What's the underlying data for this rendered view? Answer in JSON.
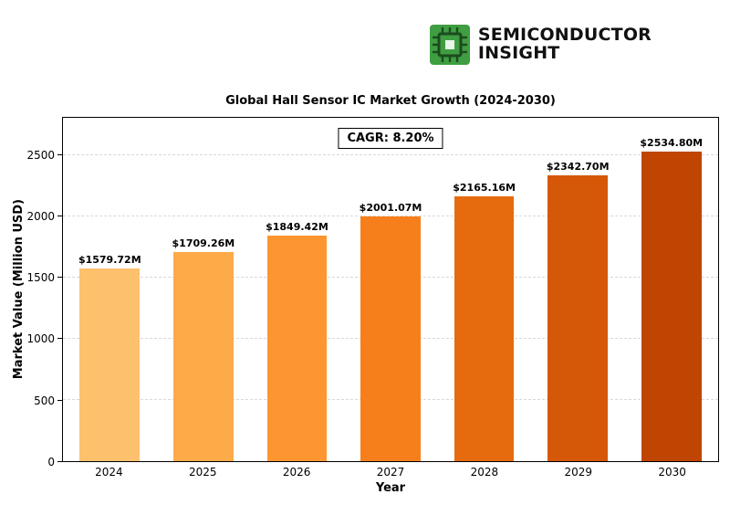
{
  "header": {
    "brand_line1": "SEMICONDUCTOR",
    "brand_line2": "INSIGHT",
    "logo_icon": "chip-icon",
    "logo_color": "#3e9e41",
    "logo_dark": "#1c4b1e"
  },
  "chart_data": {
    "type": "bar",
    "title": "Global Hall Sensor IC Market Growth (2024-2030)",
    "annotation": "CAGR: 8.20%",
    "categories": [
      "2024",
      "2025",
      "2026",
      "2027",
      "2028",
      "2029",
      "2030"
    ],
    "values": [
      1579.72,
      1709.26,
      1849.42,
      2001.07,
      2165.16,
      2342.7,
      2534.8
    ],
    "value_labels": [
      "$1579.72M",
      "$1709.26M",
      "$1849.42M",
      "$2001.07M",
      "$2165.16M",
      "$2342.70M",
      "$2534.80M"
    ],
    "bar_colors": [
      "#fdc06c",
      "#fdab49",
      "#fd9630",
      "#f67f1b",
      "#e66b0e",
      "#d55808",
      "#c04502"
    ],
    "xlabel": "Year",
    "ylabel": "Market Value (Million USD)",
    "ylim": [
      0,
      2810
    ],
    "yticks": [
      0,
      500,
      1000,
      1500,
      2000,
      2500
    ],
    "grid": true,
    "legend": "none"
  }
}
